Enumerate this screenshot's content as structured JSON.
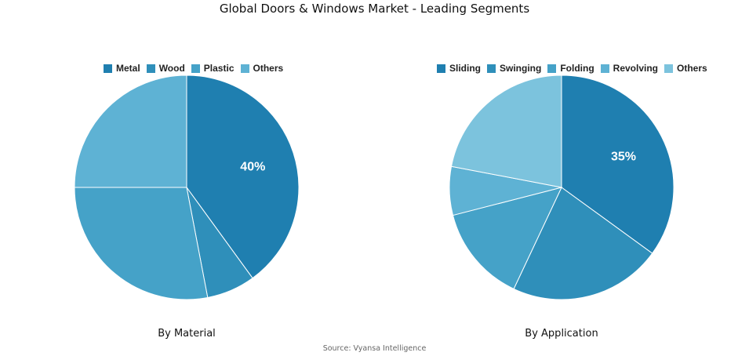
{
  "title": "Global Doors & Windows Market - Leading Segments",
  "source": "Source: Vyansa Intelligence",
  "chart_data": [
    {
      "type": "pie",
      "caption": "By Material",
      "categories": [
        "Metal",
        "Wood",
        "Plastic",
        "Others"
      ],
      "values": [
        40,
        7,
        28,
        25
      ],
      "colors": [
        "#1f7fb0",
        "#2f8fba",
        "#45a2c8",
        "#5eb2d4"
      ],
      "slice_labels": [
        "40%",
        "",
        "",
        ""
      ],
      "legend_position": "top"
    },
    {
      "type": "pie",
      "caption": "By Application",
      "categories": [
        "Sliding",
        "Swinging",
        "Folding",
        "Revolving",
        "Others"
      ],
      "values": [
        35,
        22,
        14,
        7,
        22
      ],
      "colors": [
        "#1f7fb0",
        "#2f8fba",
        "#45a2c8",
        "#5eb2d4",
        "#7cc3dd"
      ],
      "slice_labels": [
        "35%",
        "",
        "",
        "",
        ""
      ],
      "legend_position": "top"
    }
  ]
}
